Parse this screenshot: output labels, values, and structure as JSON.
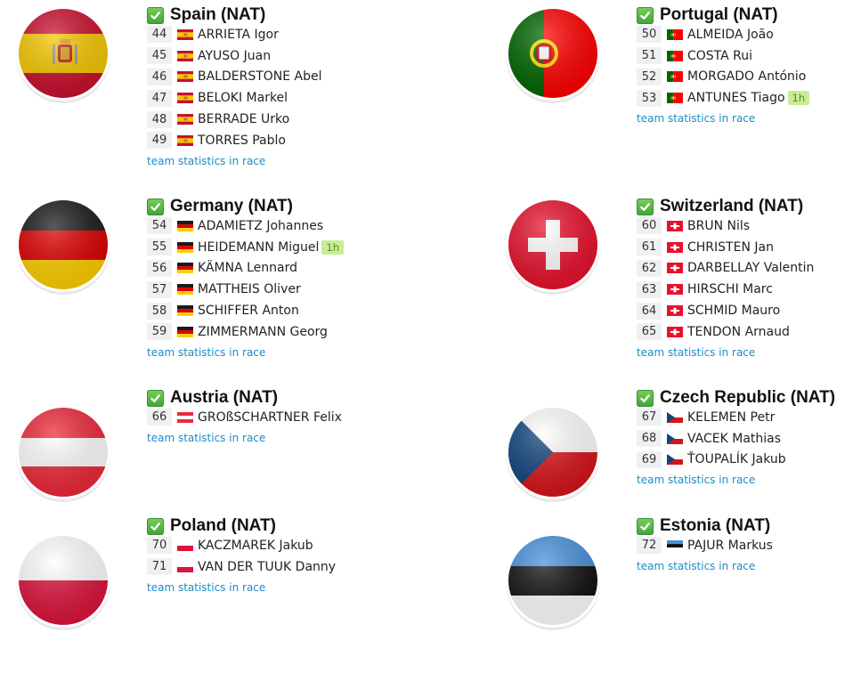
{
  "teams": [
    {
      "name": "Spain (NAT)",
      "flag": "spain",
      "link": "team statistics in race",
      "riders": [
        {
          "num": "44",
          "name": "ARRIETA Igor"
        },
        {
          "num": "45",
          "name": "AYUSO Juan"
        },
        {
          "num": "46",
          "name": "BALDERSTONE Abel"
        },
        {
          "num": "47",
          "name": "BELOKI Markel"
        },
        {
          "num": "48",
          "name": "BERRADE Urko"
        },
        {
          "num": "49",
          "name": "TORRES Pablo"
        }
      ]
    },
    {
      "name": "Portugal (NAT)",
      "flag": "portugal",
      "link": "team statistics in race",
      "riders": [
        {
          "num": "50",
          "name": "ALMEIDA João"
        },
        {
          "num": "51",
          "name": "COSTA Rui"
        },
        {
          "num": "52",
          "name": "MORGADO António"
        },
        {
          "num": "53",
          "name": "ANTUNES Tiago",
          "tag": "1h"
        }
      ]
    },
    {
      "name": "Germany (NAT)",
      "flag": "germany",
      "link": "team statistics in race",
      "riders": [
        {
          "num": "54",
          "name": "ADAMIETZ Johannes"
        },
        {
          "num": "55",
          "name": "HEIDEMANN Miguel",
          "tag": "1h"
        },
        {
          "num": "56",
          "name": "KÄMNA Lennard"
        },
        {
          "num": "57",
          "name": "MATTHEIS Oliver"
        },
        {
          "num": "58",
          "name": "SCHIFFER Anton"
        },
        {
          "num": "59",
          "name": "ZIMMERMANN Georg"
        }
      ]
    },
    {
      "name": "Switzerland (NAT)",
      "flag": "switzerland",
      "link": "team statistics in race",
      "riders": [
        {
          "num": "60",
          "name": "BRUN Nils"
        },
        {
          "num": "61",
          "name": "CHRISTEN Jan"
        },
        {
          "num": "62",
          "name": "DARBELLAY Valentin"
        },
        {
          "num": "63",
          "name": "HIRSCHI Marc"
        },
        {
          "num": "64",
          "name": "SCHMID Mauro"
        },
        {
          "num": "65",
          "name": "TENDON Arnaud"
        }
      ]
    },
    {
      "name": "Austria (NAT)",
      "flag": "austria",
      "link": "team statistics in race",
      "riders": [
        {
          "num": "66",
          "name": "GROßSCHARTNER Felix"
        }
      ]
    },
    {
      "name": "Czech Republic (NAT)",
      "flag": "czech",
      "link": "team statistics in race",
      "riders": [
        {
          "num": "67",
          "name": "KELEMEN Petr"
        },
        {
          "num": "68",
          "name": "VACEK Mathias"
        },
        {
          "num": "69",
          "name": "ŤOUPALÍK Jakub"
        }
      ]
    },
    {
      "name": "Poland (NAT)",
      "flag": "poland",
      "link": "team statistics in race",
      "riders": [
        {
          "num": "70",
          "name": "KACZMAREK Jakub"
        },
        {
          "num": "71",
          "name": "VAN DER TUUK Danny"
        }
      ]
    },
    {
      "name": "Estonia (NAT)",
      "flag": "estonia",
      "link": "team statistics in race",
      "riders": [
        {
          "num": "72",
          "name": "PAJUR Markus"
        }
      ]
    }
  ],
  "colors": {
    "link": "#1b8cc6",
    "tag_bg": "#c9ec98",
    "tag_text": "#5a8d1a",
    "check": "#4caf50"
  }
}
